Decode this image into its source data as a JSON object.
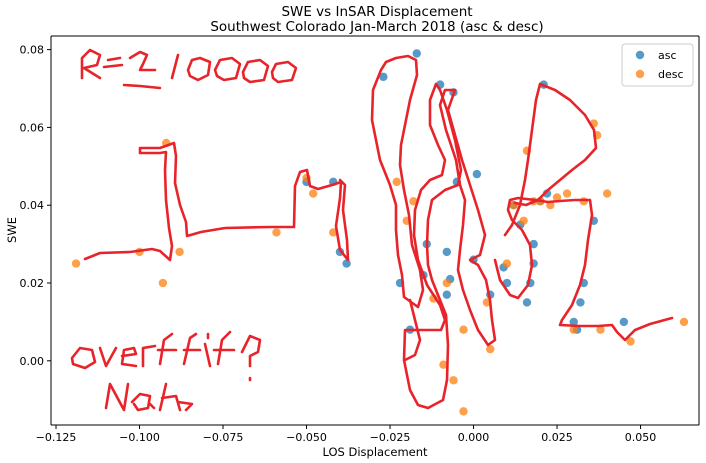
{
  "chart_data": {
    "type": "scatter",
    "title": "SWE vs InSAR Displacement",
    "subtitle": "Southwest Colorado Jan-March 2018 (asc & desc)",
    "xlabel": "LOS Displacement",
    "ylabel": "SWE",
    "xlim": [
      -0.1265,
      0.0675
    ],
    "ylim": [
      -0.0165,
      0.0835
    ],
    "xticks": [
      -0.125,
      -0.1,
      -0.075,
      -0.05,
      -0.025,
      0.0,
      0.025,
      0.05
    ],
    "xtick_labels": [
      "−0.125",
      "−0.100",
      "−0.075",
      "−0.050",
      "−0.025",
      "0.000",
      "0.025",
      "0.050"
    ],
    "yticks": [
      0.0,
      0.02,
      0.04,
      0.06,
      0.08
    ],
    "ytick_labels": [
      "0.00",
      "0.02",
      "0.04",
      "0.06",
      "0.08"
    ],
    "grid": false,
    "legend_position": "top-right",
    "series": [
      {
        "name": "asc",
        "color": "#1f77b4",
        "x": [
          -0.05,
          -0.042,
          -0.04,
          -0.038,
          -0.027,
          -0.022,
          -0.019,
          -0.017,
          -0.015,
          -0.014,
          -0.01,
          -0.008,
          -0.008,
          -0.007,
          -0.006,
          -0.005,
          0.0,
          0.001,
          0.005,
          0.009,
          0.01,
          0.012,
          0.014,
          0.016,
          0.017,
          0.018,
          0.018,
          0.02,
          0.021,
          0.022,
          0.03,
          0.031,
          0.032,
          0.033,
          0.036,
          0.045
        ],
        "y": [
          0.046,
          0.046,
          0.028,
          0.025,
          0.073,
          0.02,
          0.008,
          0.079,
          0.022,
          0.03,
          0.071,
          0.017,
          0.028,
          0.021,
          0.069,
          0.046,
          0.026,
          0.048,
          0.017,
          0.024,
          0.02,
          0.04,
          0.035,
          0.015,
          0.02,
          0.025,
          0.03,
          0.041,
          0.071,
          0.043,
          0.01,
          0.008,
          0.015,
          0.02,
          0.036,
          0.01
        ]
      },
      {
        "name": "desc",
        "color": "#ff7f0e",
        "x": [
          -0.119,
          -0.1,
          -0.093,
          -0.092,
          -0.088,
          -0.059,
          -0.05,
          -0.048,
          -0.042,
          -0.023,
          -0.02,
          -0.018,
          -0.012,
          -0.009,
          -0.008,
          -0.006,
          -0.003,
          -0.003,
          0.004,
          0.005,
          0.01,
          0.012,
          0.015,
          0.016,
          0.018,
          0.02,
          0.023,
          0.025,
          0.028,
          0.03,
          0.033,
          0.036,
          0.037,
          0.038,
          0.04,
          0.047,
          0.063
        ],
        "y": [
          0.025,
          0.028,
          0.02,
          0.056,
          0.028,
          0.033,
          0.047,
          0.043,
          0.033,
          0.046,
          0.036,
          0.041,
          0.016,
          -0.001,
          0.02,
          -0.005,
          0.008,
          -0.013,
          0.015,
          0.003,
          0.025,
          0.04,
          0.036,
          0.054,
          0.041,
          0.041,
          0.04,
          0.042,
          0.043,
          0.008,
          0.041,
          0.061,
          0.058,
          0.008,
          0.043,
          0.005,
          0.01
        ]
      }
    ],
    "annotations": [
      "R²=1000",
      "overfit?",
      "Nah"
    ]
  }
}
